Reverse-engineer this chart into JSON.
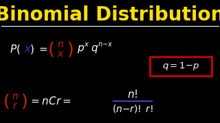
{
  "background_color": "#000000",
  "title": "Binomial Distribution",
  "title_color": "#FFE000",
  "title_fontsize": 20,
  "underline_color": "#FFFFFF",
  "box_edge_color": "#CC0000",
  "white": "#FFFFFF",
  "blue": "#3333CC",
  "red": "#CC2200",
  "line_blue": "#3333AA",
  "figsize": [
    3.2,
    1.8
  ],
  "dpi": 100
}
